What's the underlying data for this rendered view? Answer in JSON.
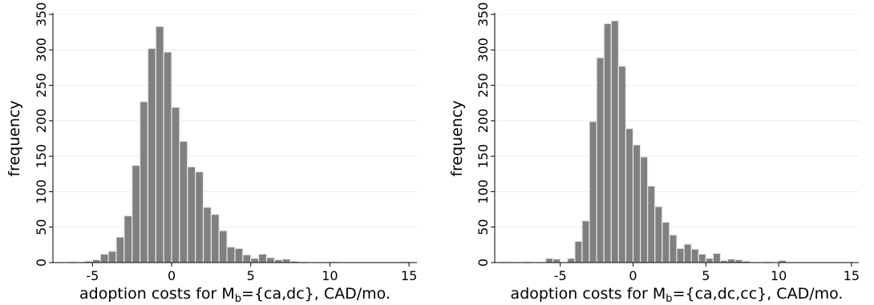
{
  "chart_data": [
    {
      "type": "bar",
      "xlabel_prefix": "adoption costs for M",
      "xlabel_sub": "b",
      "xlabel_suffix": "={ca,dc}, CAD/mo.",
      "ylabel": "frequency",
      "xlim": [
        -7.5,
        15.5
      ],
      "ylim": [
        0,
        350
      ],
      "xticks": [
        -5,
        0,
        5,
        10,
        15
      ],
      "yticks": [
        0,
        50,
        100,
        150,
        200,
        250,
        300,
        350
      ],
      "grid": true,
      "bar_color": "#808080",
      "bin_width": 0.5,
      "bin_start": -6.5,
      "values": [
        1,
        0,
        2,
        4,
        12,
        16,
        36,
        66,
        137,
        227,
        302,
        333,
        297,
        219,
        171,
        135,
        128,
        78,
        68,
        45,
        22,
        20,
        11,
        6,
        12,
        7,
        4,
        5,
        2,
        1,
        0,
        0,
        0,
        1,
        0,
        0,
        0,
        0,
        0,
        0,
        0,
        0,
        1
      ]
    },
    {
      "type": "bar",
      "xlabel_prefix": "adoption costs for M",
      "xlabel_sub": "b",
      "xlabel_suffix": "={ca,dc,cc}, CAD/mo.",
      "ylabel": "frequency",
      "xlim": [
        -9.5,
        15.5
      ],
      "ylim": [
        0,
        350
      ],
      "xticks": [
        -5,
        0,
        5,
        10,
        15
      ],
      "yticks": [
        0,
        50,
        100,
        150,
        200,
        250,
        300,
        350
      ],
      "grid": true,
      "bar_color": "#808080",
      "bin_width": 0.5,
      "bin_start": -9.0,
      "values": [
        1,
        0,
        0,
        1,
        0,
        0,
        6,
        5,
        0,
        6,
        30,
        59,
        199,
        289,
        337,
        341,
        277,
        189,
        166,
        149,
        108,
        79,
        57,
        39,
        20,
        26,
        19,
        12,
        6,
        13,
        3,
        5,
        4,
        2,
        0,
        0,
        1,
        0,
        3,
        0,
        0,
        0,
        0,
        0,
        0,
        0,
        0,
        0
      ]
    }
  ]
}
